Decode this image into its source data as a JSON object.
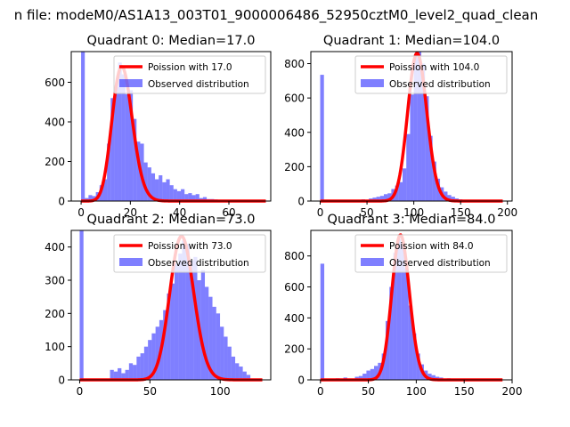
{
  "figure_title": "n file: modeM0/AS1A13_003T01_9000006486_52950cztM0_level2_quad_clean",
  "colors": {
    "hist": "#0000ff",
    "fit": "#ff0000"
  },
  "chart_data": [
    {
      "type": "bar",
      "title": "Quadrant 0: Median=17.0",
      "xlim": [
        -4,
        77
      ],
      "ylim": [
        0,
        755
      ],
      "xticks": [
        0,
        20,
        40,
        60
      ],
      "yticks": [
        0,
        200,
        400,
        600
      ],
      "bin_width": 1.5,
      "bins": [
        [
          0,
          755
        ],
        [
          1.5,
          15
        ],
        [
          3,
          30
        ],
        [
          4.5,
          25
        ],
        [
          6,
          45
        ],
        [
          7.5,
          80
        ],
        [
          9,
          110
        ],
        [
          10.5,
          290
        ],
        [
          12,
          520
        ],
        [
          13.5,
          575
        ],
        [
          15,
          700
        ],
        [
          16.5,
          640
        ],
        [
          18,
          540
        ],
        [
          19.5,
          560
        ],
        [
          21,
          415
        ],
        [
          22.5,
          300
        ],
        [
          24,
          290
        ],
        [
          25.5,
          195
        ],
        [
          27,
          170
        ],
        [
          28.5,
          140
        ],
        [
          30,
          110
        ],
        [
          31.5,
          130
        ],
        [
          33,
          95
        ],
        [
          34.5,
          110
        ],
        [
          36,
          80
        ],
        [
          37.5,
          60
        ],
        [
          39,
          50
        ],
        [
          40.5,
          60
        ],
        [
          42,
          35
        ],
        [
          43.5,
          40
        ],
        [
          45,
          30
        ],
        [
          46.5,
          35
        ],
        [
          48,
          15
        ],
        [
          49.5,
          20
        ],
        [
          51,
          10
        ],
        [
          52.5,
          10
        ],
        [
          54,
          8
        ],
        [
          55.5,
          5
        ],
        [
          57,
          4
        ],
        [
          58.5,
          3
        ],
        [
          60,
          2
        ],
        [
          61.5,
          2
        ],
        [
          63,
          1
        ],
        [
          64.5,
          1
        ]
      ],
      "fit": {
        "label": "Poission with 17.0",
        "mean": 17.0,
        "scale": 675,
        "x_range": [
          0,
          75
        ]
      },
      "legend": {
        "fit": "Poission with 17.0",
        "hist": "Observed distribution"
      }
    },
    {
      "type": "bar",
      "title": "Quadrant 1: Median=104.0",
      "xlim": [
        -10,
        205
      ],
      "ylim": [
        0,
        870
      ],
      "xticks": [
        0,
        50,
        100,
        150,
        200
      ],
      "yticks": [
        0,
        200,
        400,
        600,
        800
      ],
      "bin_width": 4,
      "bins": [
        [
          0,
          735
        ],
        [
          44,
          10
        ],
        [
          52,
          15
        ],
        [
          56,
          20
        ],
        [
          60,
          25
        ],
        [
          64,
          30
        ],
        [
          68,
          40
        ],
        [
          72,
          45
        ],
        [
          76,
          70
        ],
        [
          80,
          90
        ],
        [
          84,
          110
        ],
        [
          88,
          190
        ],
        [
          92,
          390
        ],
        [
          96,
          620
        ],
        [
          100,
          840
        ],
        [
          104,
          870
        ],
        [
          108,
          800
        ],
        [
          112,
          610
        ],
        [
          116,
          380
        ],
        [
          120,
          230
        ],
        [
          124,
          130
        ],
        [
          128,
          80
        ],
        [
          132,
          55
        ],
        [
          136,
          35
        ],
        [
          140,
          25
        ],
        [
          144,
          15
        ],
        [
          148,
          10
        ],
        [
          152,
          5
        ]
      ],
      "fit": {
        "label": "Poission with 104.0",
        "mean": 104.0,
        "scale": 860,
        "x_range": [
          0,
          195
        ]
      },
      "legend": {
        "fit": "Poission with 104.0",
        "hist": "Observed distribution"
      }
    },
    {
      "type": "bar",
      "title": "Quadrant 2: Median=73.0",
      "xlim": [
        -6,
        136
      ],
      "ylim": [
        0,
        450
      ],
      "xticks": [
        0,
        50,
        100
      ],
      "yticks": [
        0,
        100,
        200,
        300,
        400
      ],
      "bin_width": 2.7,
      "bins": [
        [
          0,
          450
        ],
        [
          21.6,
          30
        ],
        [
          24.3,
          25
        ],
        [
          27,
          35
        ],
        [
          29.7,
          20
        ],
        [
          32.4,
          30
        ],
        [
          35.1,
          50
        ],
        [
          37.8,
          45
        ],
        [
          40.5,
          70
        ],
        [
          43.2,
          80
        ],
        [
          45.9,
          100
        ],
        [
          48.6,
          120
        ],
        [
          51.3,
          140
        ],
        [
          54,
          160
        ],
        [
          56.7,
          180
        ],
        [
          59.4,
          210
        ],
        [
          62.1,
          260
        ],
        [
          64.8,
          290
        ],
        [
          67.5,
          350
        ],
        [
          70.2,
          380
        ],
        [
          72.9,
          420
        ],
        [
          75.6,
          410
        ],
        [
          78.3,
          360
        ],
        [
          81,
          370
        ],
        [
          83.7,
          300
        ],
        [
          86.4,
          330
        ],
        [
          89.1,
          280
        ],
        [
          91.8,
          250
        ],
        [
          94.5,
          220
        ],
        [
          97.2,
          200
        ],
        [
          99.9,
          160
        ],
        [
          102.6,
          130
        ],
        [
          105.3,
          100
        ],
        [
          108,
          70
        ],
        [
          110.7,
          50
        ],
        [
          113.4,
          40
        ],
        [
          116.1,
          25
        ],
        [
          118.8,
          15
        ]
      ],
      "fit": {
        "label": "Poission with 73.0",
        "mean": 73.0,
        "scale": 432,
        "x_range": [
          0,
          130
        ]
      },
      "legend": {
        "fit": "Poission with 73.0",
        "hist": "Observed distribution"
      }
    },
    {
      "type": "bar",
      "title": "Quadrant 3: Median=84.0",
      "xlim": [
        -10,
        200
      ],
      "ylim": [
        0,
        965
      ],
      "xticks": [
        0,
        50,
        100,
        150,
        200
      ],
      "yticks": [
        0,
        200,
        400,
        600,
        800
      ],
      "bin_width": 4,
      "bins": [
        [
          0,
          750
        ],
        [
          16,
          10
        ],
        [
          24,
          15
        ],
        [
          36,
          20
        ],
        [
          40,
          25
        ],
        [
          44,
          40
        ],
        [
          48,
          60
        ],
        [
          52,
          70
        ],
        [
          56,
          90
        ],
        [
          60,
          110
        ],
        [
          64,
          170
        ],
        [
          68,
          380
        ],
        [
          72,
          600
        ],
        [
          76,
          820
        ],
        [
          80,
          910
        ],
        [
          84,
          890
        ],
        [
          88,
          720
        ],
        [
          92,
          480
        ],
        [
          96,
          300
        ],
        [
          100,
          170
        ],
        [
          104,
          100
        ],
        [
          108,
          60
        ],
        [
          112,
          40
        ],
        [
          116,
          30
        ],
        [
          120,
          20
        ],
        [
          124,
          15
        ],
        [
          132,
          10
        ],
        [
          144,
          8
        ],
        [
          156,
          5
        ],
        [
          172,
          5
        ]
      ],
      "fit": {
        "label": "Poission with 84.0",
        "mean": 84.0,
        "scale": 935,
        "x_range": [
          0,
          190
        ]
      },
      "legend": {
        "fit": "Poission with 84.0",
        "hist": "Observed distribution"
      }
    }
  ]
}
